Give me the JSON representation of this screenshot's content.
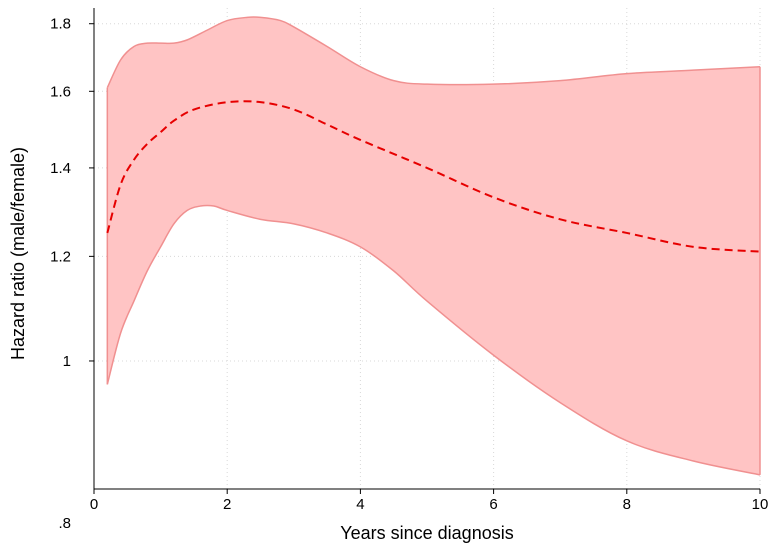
{
  "chart_data": {
    "type": "area",
    "xlabel": "Years since diagnosis",
    "ylabel": "Hazard ratio (male/female)",
    "xlim": [
      0,
      10
    ],
    "ylim": [
      0.8,
      1.85
    ],
    "y_scale": "log",
    "x_ticks": [
      0,
      2,
      4,
      6,
      8,
      10
    ],
    "x_tick_labels": [
      "0",
      "2",
      "4",
      "6",
      "8",
      "10"
    ],
    "y_ticks": [
      0.8,
      1.0,
      1.2,
      1.4,
      1.6,
      1.8
    ],
    "y_tick_labels": [
      ".8",
      "1",
      "1.2",
      "1.4",
      "1.6",
      "1.8"
    ],
    "grid": true,
    "legend": "none",
    "colors": {
      "band_fill": "#ffc4c4",
      "band_edge": "#f09090",
      "estimate_line": "#e60000"
    },
    "series": [
      {
        "role": "estimate",
        "style": "dashed",
        "x": [
          0.2,
          0.4,
          0.6,
          0.8,
          1.0,
          1.2,
          1.5,
          2.0,
          2.5,
          3.0,
          3.5,
          4.0,
          5.0,
          6.0,
          7.0,
          8.0,
          9.0,
          10.0
        ],
        "y": [
          1.25,
          1.36,
          1.42,
          1.46,
          1.49,
          1.52,
          1.55,
          1.57,
          1.57,
          1.55,
          1.51,
          1.47,
          1.4,
          1.33,
          1.28,
          1.25,
          1.22,
          1.21
        ]
      },
      {
        "role": "upper-ci",
        "x": [
          0.2,
          0.4,
          0.6,
          0.8,
          1.0,
          1.2,
          1.4,
          1.7,
          2.0,
          2.3,
          2.5,
          2.8,
          3.0,
          3.5,
          4.0,
          4.5,
          5.0,
          6.0,
          7.0,
          8.0,
          9.0,
          10.0
        ],
        "y": [
          1.61,
          1.69,
          1.73,
          1.74,
          1.74,
          1.74,
          1.75,
          1.78,
          1.81,
          1.82,
          1.82,
          1.81,
          1.79,
          1.73,
          1.67,
          1.63,
          1.62,
          1.62,
          1.63,
          1.65,
          1.66,
          1.67
        ]
      },
      {
        "role": "lower-ci",
        "x": [
          0.2,
          0.4,
          0.6,
          0.8,
          1.0,
          1.2,
          1.4,
          1.6,
          1.8,
          2.0,
          2.5,
          3.0,
          3.5,
          4.0,
          4.5,
          5.0,
          6.0,
          7.0,
          8.0,
          9.0,
          10.0
        ],
        "y": [
          0.96,
          1.05,
          1.11,
          1.17,
          1.22,
          1.27,
          1.3,
          1.31,
          1.31,
          1.3,
          1.28,
          1.27,
          1.25,
          1.22,
          1.17,
          1.11,
          1.01,
          0.93,
          0.87,
          0.84,
          0.82
        ]
      }
    ]
  }
}
